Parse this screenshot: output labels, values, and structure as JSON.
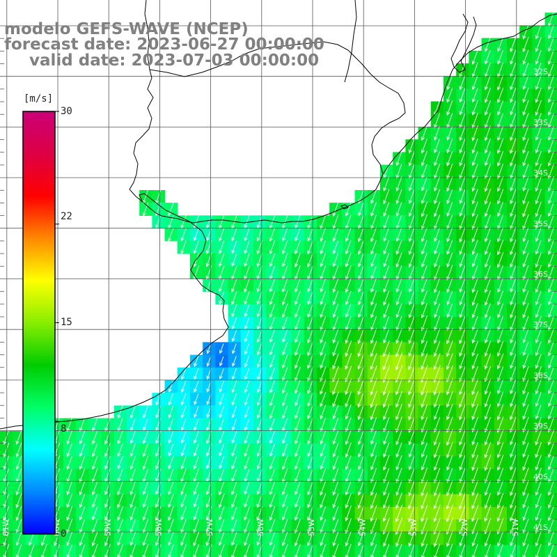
{
  "title": {
    "line1": "modelo GEFS-WAVE (NCEP)",
    "line2": "forecast date: 2023-06-27 00:00:00",
    "line3": "valid date: 2023-07-03 00:00:00"
  },
  "colorbar": {
    "unit": "[m/s]",
    "tick_labels": [
      "30",
      "22",
      "15",
      "8",
      "0"
    ],
    "ticks": [
      30,
      22,
      15,
      8,
      0
    ],
    "min": 0,
    "max": 30,
    "colors": [
      "#0000ff",
      "#0088ff",
      "#00ffff",
      "#00ff66",
      "#00cc00",
      "#88ee00",
      "#ffff00",
      "#ff8800",
      "#ff0000",
      "#dd0044",
      "#cc0077"
    ]
  },
  "map": {
    "variable": "wind speed",
    "longitudes_shown": [
      -61,
      -60,
      -59,
      -58,
      -57,
      -56,
      -55,
      -54,
      -53,
      -52,
      -51,
      -50
    ],
    "latitudes_shown": [
      -31,
      -32,
      -33,
      -34,
      -35,
      -36,
      -37,
      -38,
      -39,
      -40,
      -41
    ],
    "lat_labels": [
      "32S",
      "33S",
      "34S",
      "35S",
      "36S",
      "37S",
      "38S",
      "39S",
      "40S",
      "41S"
    ],
    "lon_labels": [
      "61W",
      "60W",
      "59W",
      "58W",
      "57W",
      "56W",
      "55W",
      "54W",
      "53W",
      "52W",
      "51W"
    ],
    "wind_direction_deg_to": 200,
    "colors": {
      "land": "#ffffff",
      "grid": "#555555",
      "coast": "#000000",
      "arrows": "#ffffff",
      "title": "#808080"
    }
  }
}
